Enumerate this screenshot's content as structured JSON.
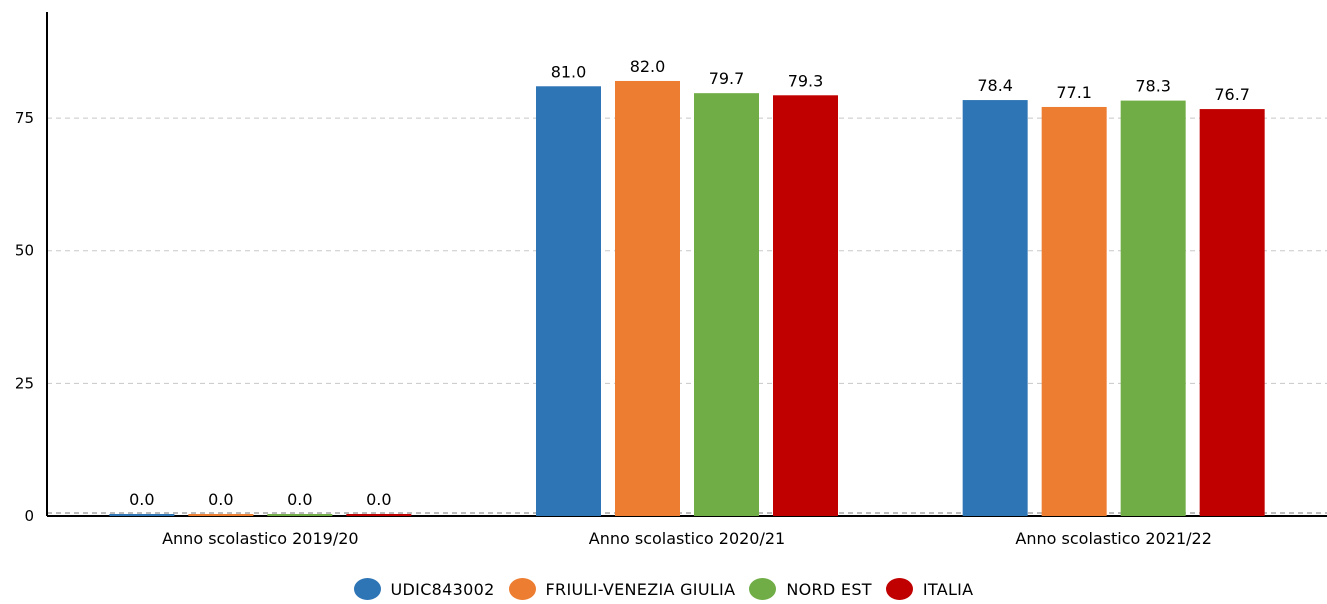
{
  "chart_data": {
    "type": "bar",
    "title": "",
    "xlabel": "",
    "ylabel": "",
    "categories": [
      "Anno scolastico 2019/20",
      "Anno scolastico 2020/21",
      "Anno scolastico 2021/22"
    ],
    "series": [
      {
        "name": "UDIC843002",
        "color": "#2e75b6",
        "values": [
          0.0,
          81.0,
          78.4
        ],
        "labels": [
          "0.0",
          "81.0",
          "78.4"
        ]
      },
      {
        "name": "FRIULI-VENEZIA GIULIA",
        "color": "#ed7d31",
        "values": [
          0.0,
          82.0,
          77.1
        ],
        "labels": [
          "0.0",
          "82.0",
          "77.1"
        ]
      },
      {
        "name": "NORD EST",
        "color": "#70ad47",
        "values": [
          0.0,
          79.7,
          78.3
        ],
        "labels": [
          "0.0",
          "79.7",
          "78.3"
        ]
      },
      {
        "name": "ITALIA",
        "color": "#c00000",
        "values": [
          0.0,
          79.3,
          76.7
        ],
        "labels": [
          "0.0",
          "79.3",
          "76.7"
        ]
      }
    ],
    "ylim": [
      0,
      95
    ],
    "yticks": [
      0,
      25,
      50,
      75
    ],
    "ytick_labels": [
      "0",
      "25",
      "50",
      "75"
    ],
    "grid": true,
    "legend_position": "bottom-center"
  }
}
